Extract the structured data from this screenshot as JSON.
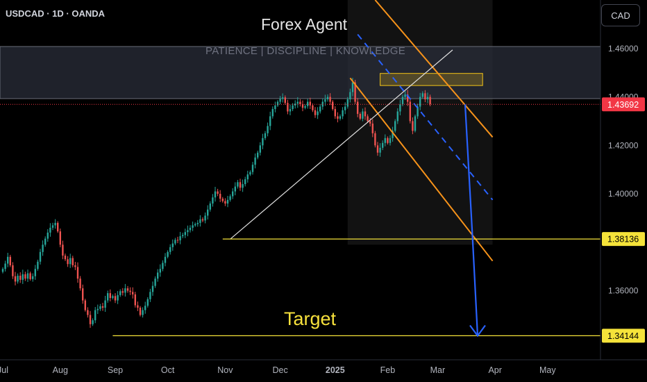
{
  "header": {
    "symbol": "USDCAD · 1D · OANDA",
    "currency_button": "CAD"
  },
  "branding": {
    "title": "Forex Agent",
    "subtitle": "PATIENCE  |  DISCIPLINE  |  KNOWLEDGE"
  },
  "annotations": {
    "target_label": "Target"
  },
  "colors": {
    "background": "#000000",
    "bull": "#26a69a",
    "bear": "#ef5350",
    "channel": "#f7931a",
    "trend_blue": "#2962ff",
    "level_yellow": "#f5e33a",
    "zone_fill": "#2a2e39",
    "current_price_bg": "#f23645",
    "axis_text": "#b2b5be"
  },
  "chart_data": {
    "type": "candlestick",
    "symbol": "USDCAD",
    "timeframe": "1D",
    "source": "OANDA",
    "ylim": [
      1.3338,
      1.48
    ],
    "y_ticks": [
      "1.46000",
      "1.44000",
      "1.42000",
      "1.40000",
      "1.38000",
      "1.36000"
    ],
    "x_ticks": [
      "Jul",
      "Aug",
      "Sep",
      "Oct",
      "Nov",
      "Dec",
      "2025",
      "Feb",
      "Mar",
      "Apr",
      "May"
    ],
    "x_tick_positions": [
      0,
      23,
      45,
      66,
      89,
      111,
      133,
      154,
      174,
      197,
      218
    ],
    "current_price": "1.43692",
    "price_labels": [
      {
        "label": "1.43692",
        "value": 1.43692,
        "style": "current"
      },
      {
        "label": "1.38136",
        "value": 1.38136,
        "style": "level"
      },
      {
        "label": "1.34144",
        "value": 1.34144,
        "style": "level"
      }
    ],
    "closes": [
      1.369,
      1.3712,
      1.374,
      1.3705,
      1.366,
      1.3638,
      1.3662,
      1.3645,
      1.3668,
      1.365,
      1.3672,
      1.3648,
      1.366,
      1.369,
      1.372,
      1.376,
      1.379,
      1.3815,
      1.384,
      1.386,
      1.387,
      1.388,
      1.3845,
      1.379,
      1.3745,
      1.373,
      1.371,
      1.3735,
      1.3705,
      1.3698,
      1.365,
      1.361,
      1.356,
      1.352,
      1.35,
      1.3462,
      1.3478,
      1.352,
      1.3525,
      1.3536,
      1.353,
      1.356,
      1.359,
      1.357,
      1.3578,
      1.356,
      1.3582,
      1.3598,
      1.3592,
      1.361,
      1.36,
      1.3595,
      1.3585,
      1.354,
      1.353,
      1.35,
      1.352,
      1.3538,
      1.3565,
      1.3595,
      1.362,
      1.365,
      1.3675,
      1.369,
      1.3715,
      1.374,
      1.376,
      1.378,
      1.3795,
      1.381,
      1.3808,
      1.3825,
      1.383,
      1.3842,
      1.385,
      1.386,
      1.387,
      1.3875,
      1.388,
      1.3895,
      1.389,
      1.391,
      1.3935,
      1.396,
      1.3985,
      1.401,
      1.4,
      1.398,
      1.397,
      1.396,
      1.3975,
      1.399,
      1.401,
      1.403,
      1.4048,
      1.4025,
      1.404,
      1.406,
      1.408,
      1.409,
      1.412,
      1.415,
      1.417,
      1.42,
      1.423,
      1.425,
      1.428,
      1.432,
      1.435,
      1.4365,
      1.438,
      1.4392,
      1.4398,
      1.4375,
      1.434,
      1.435,
      1.4365,
      1.4372,
      1.438,
      1.437,
      1.4355,
      1.4362,
      1.438,
      1.4365,
      1.4345,
      1.4325,
      1.434,
      1.436,
      1.438,
      1.439,
      1.44,
      1.438,
      1.435,
      1.432,
      1.431,
      1.432,
      1.4345,
      1.436,
      1.439,
      1.442,
      1.446,
      1.438,
      1.433,
      1.431,
      1.434,
      1.432,
      1.43,
      1.429,
      1.425,
      1.42,
      1.417,
      1.419,
      1.421,
      1.423,
      1.421,
      1.423,
      1.426,
      1.43,
      1.434,
      1.437,
      1.44,
      1.441,
      1.438,
      1.43,
      1.426,
      1.432,
      1.436,
      1.44,
      1.4415,
      1.439,
      1.44,
      1.437
    ],
    "annotations": {
      "resistance_zone": {
        "y_top": 1.4608,
        "y_bottom": 1.4393
      },
      "supply_box": {
        "x_start": 151,
        "x_end": 192,
        "y_top": 1.4497,
        "y_bottom": 1.4447
      },
      "shaded_range": {
        "x_start": 138,
        "x_end": 196,
        "y_top": 1.48,
        "y_bottom": 1.379
      },
      "channel_upper": [
        {
          "x": 149,
          "y": 1.48
        },
        {
          "x": 196,
          "y": 1.4234
        }
      ],
      "channel_lower": [
        {
          "x": 139,
          "y": 1.4478
        },
        {
          "x": 196,
          "y": 1.3723
        }
      ],
      "channel_mid": [
        {
          "x": 142,
          "y": 1.4658
        },
        {
          "x": 196,
          "y": 1.3975
        }
      ],
      "rising_trendline": [
        {
          "x": 91,
          "y": 1.3813
        },
        {
          "x": 180,
          "y": 1.4594
        }
      ],
      "forecast_arrow": [
        {
          "x": 185,
          "y": 1.4369
        },
        {
          "x": 188,
          "y": 1.3813
        },
        {
          "x": 190,
          "y": 1.3414
        }
      ],
      "level_1": {
        "value": 1.38136,
        "x_start": 88
      },
      "level_2": {
        "value": 1.34144,
        "x_start": 44
      }
    }
  }
}
